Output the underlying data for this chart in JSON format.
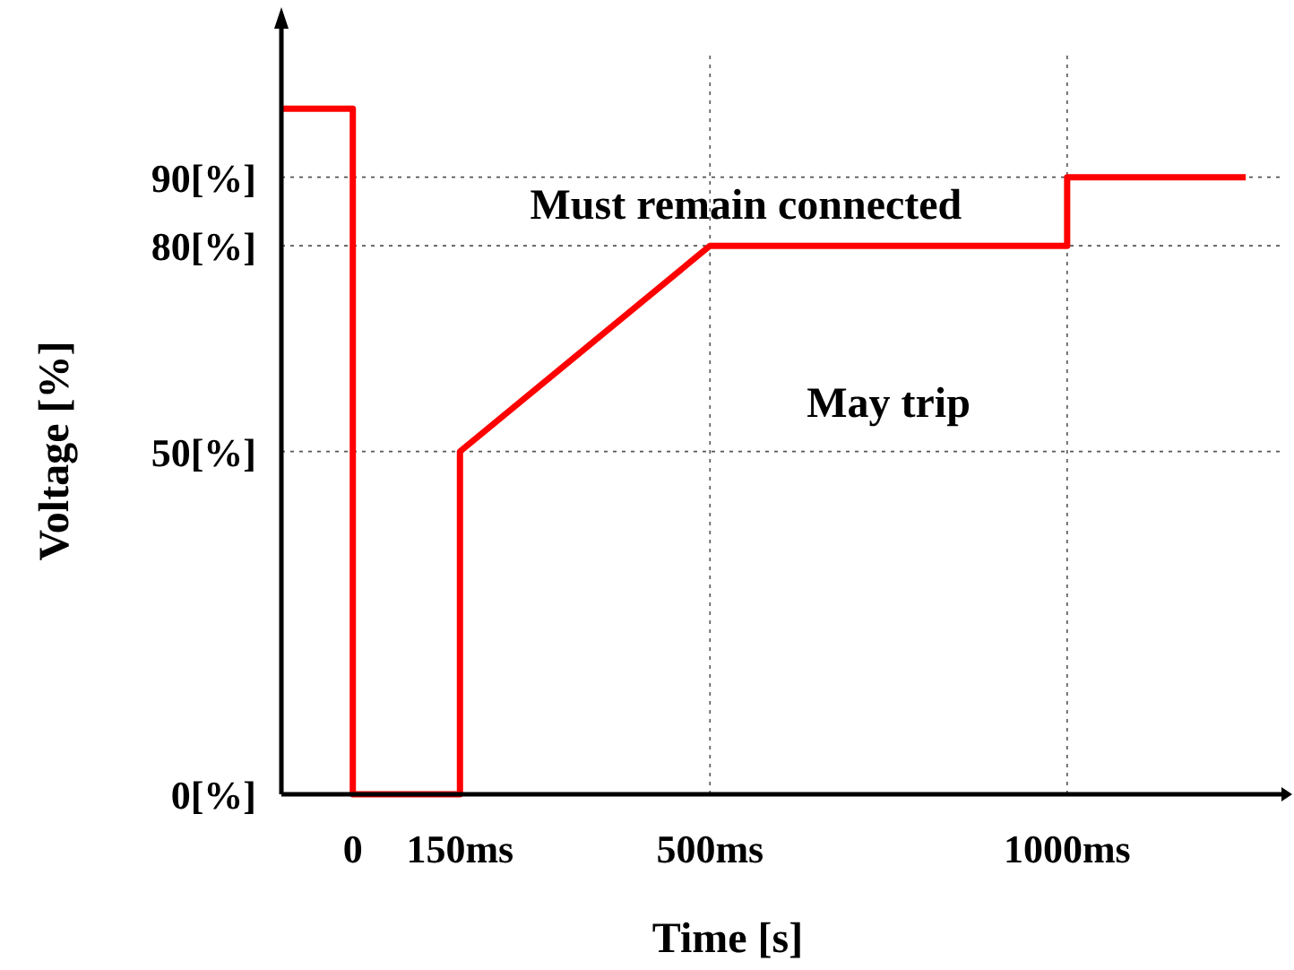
{
  "chart_data": {
    "type": "line",
    "xlabel": "Time [s]",
    "ylabel": "Voltage [%]",
    "series": [
      {
        "color": "#ff0000",
        "x": [
          -100,
          0,
          0,
          150,
          150,
          500,
          1000,
          1000,
          1250
        ],
        "values": [
          100,
          100,
          0,
          0,
          50,
          80,
          80,
          90,
          90
        ]
      }
    ],
    "xlim": [
      -100,
      1300
    ],
    "xticks": [
      0,
      {
        "value": 150,
        "label": "150ms"
      },
      {
        "value": 500,
        "label": "500ms"
      },
      {
        "value": 1000,
        "label": "1000ms"
      }
    ],
    "ylim": [
      0,
      108
    ],
    "yticks": [
      {
        "value": 0,
        "label": "0[%]"
      },
      {
        "value": 50,
        "label": "50[%]"
      },
      {
        "value": 80,
        "label": "80[%]"
      },
      {
        "value": 90,
        "label": "90[%]"
      }
    ],
    "ref_lines": [
      {
        "axis": "y",
        "value": 90,
        "line_style": "dotted"
      },
      {
        "axis": "y",
        "value": 80,
        "line_style": "dotted"
      },
      {
        "axis": "y",
        "value": 50,
        "line_style": "dotted"
      },
      {
        "axis": "x",
        "value": 500,
        "line_style": "dotted"
      },
      {
        "axis": "x",
        "value": 1000,
        "line_style": "dotted"
      }
    ],
    "annotations": [
      "Must remain connected",
      "May trip"
    ],
    "grid": false,
    "marker": "none",
    "line_style": "solid"
  }
}
